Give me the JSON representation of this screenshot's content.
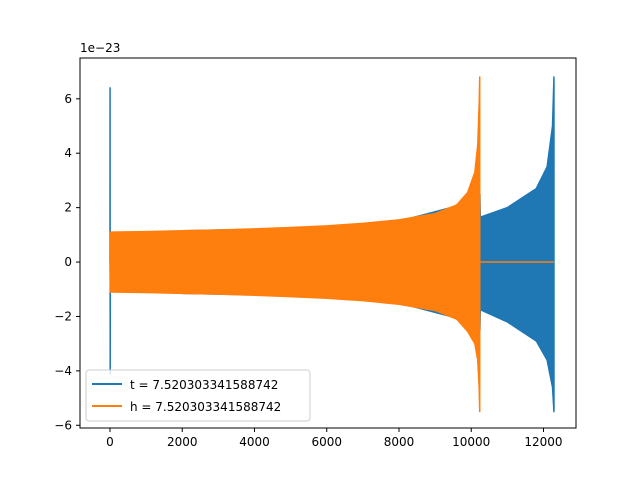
{
  "chart_data": {
    "type": "line",
    "offset_label": "1e−23",
    "xlim": [
      -830,
      12900
    ],
    "ylim": [
      -6.1,
      7.5
    ],
    "xticks": [
      0,
      2000,
      4000,
      6000,
      8000,
      10000,
      12000
    ],
    "xtick_labels": [
      "0",
      "2000",
      "4000",
      "6000",
      "8000",
      "10000",
      "12000"
    ],
    "yticks": [
      -6,
      -4,
      -2,
      0,
      2,
      4,
      6
    ],
    "ytick_labels": [
      "−6",
      "−4",
      "−2",
      "0",
      "2",
      "4",
      "6"
    ],
    "grid": false,
    "legend_position": "lower-left",
    "series": [
      {
        "name": "t = 7.520303341588742",
        "color": "#1f77b4",
        "points": [
          [
            0,
            0
          ],
          [
            2,
            6.4
          ],
          [
            6,
            -4.1
          ],
          [
            10,
            1.1
          ],
          [
            14,
            -1.1
          ],
          [
            2000,
            1.15
          ],
          [
            4000,
            1.2
          ],
          [
            6000,
            1.3
          ],
          [
            8000,
            1.5
          ],
          [
            10000,
            2.2
          ],
          [
            10240,
            2.5
          ],
          [
            10250,
            1.65
          ],
          [
            11000,
            2.0
          ],
          [
            11800,
            2.7
          ],
          [
            12100,
            3.5
          ],
          [
            12250,
            5.0
          ],
          [
            12290,
            6.8
          ],
          [
            12290,
            -5.5
          ],
          [
            12250,
            -4.6
          ],
          [
            12100,
            -3.6
          ],
          [
            11800,
            -2.9
          ],
          [
            11000,
            -2.2
          ],
          [
            10250,
            -1.75
          ],
          [
            10240,
            -2.5
          ],
          [
            10000,
            -2.2
          ],
          [
            8000,
            -1.5
          ],
          [
            6000,
            -1.3
          ],
          [
            4000,
            -1.2
          ],
          [
            2000,
            -1.15
          ]
        ]
      },
      {
        "name": "h = 7.520303341588742",
        "color": "#ff7f0e",
        "points": [
          [
            0,
            0
          ],
          [
            10,
            1.1
          ],
          [
            1000,
            1.12
          ],
          [
            2000,
            1.15
          ],
          [
            3000,
            1.18
          ],
          [
            4000,
            1.22
          ],
          [
            5000,
            1.27
          ],
          [
            6000,
            1.33
          ],
          [
            7000,
            1.42
          ],
          [
            8000,
            1.55
          ],
          [
            9000,
            1.78
          ],
          [
            9600,
            2.1
          ],
          [
            9900,
            2.55
          ],
          [
            10100,
            3.3
          ],
          [
            10180,
            4.3
          ],
          [
            10220,
            5.8
          ],
          [
            10235,
            6.8
          ],
          [
            10235,
            -5.5
          ],
          [
            10220,
            -4.6
          ],
          [
            10180,
            -3.6
          ],
          [
            10100,
            -3.0
          ],
          [
            9900,
            -2.55
          ],
          [
            9600,
            -2.1
          ],
          [
            9000,
            -1.78
          ],
          [
            8000,
            -1.55
          ],
          [
            7000,
            -1.42
          ],
          [
            6000,
            -1.33
          ],
          [
            5000,
            -1.27
          ],
          [
            4000,
            -1.22
          ],
          [
            3000,
            -1.18
          ],
          [
            2000,
            -1.15
          ],
          [
            1000,
            -1.12
          ],
          [
            10,
            -1.1
          ],
          [
            0,
            0
          ],
          [
            10240,
            0
          ],
          [
            12290,
            0
          ]
        ]
      }
    ]
  }
}
